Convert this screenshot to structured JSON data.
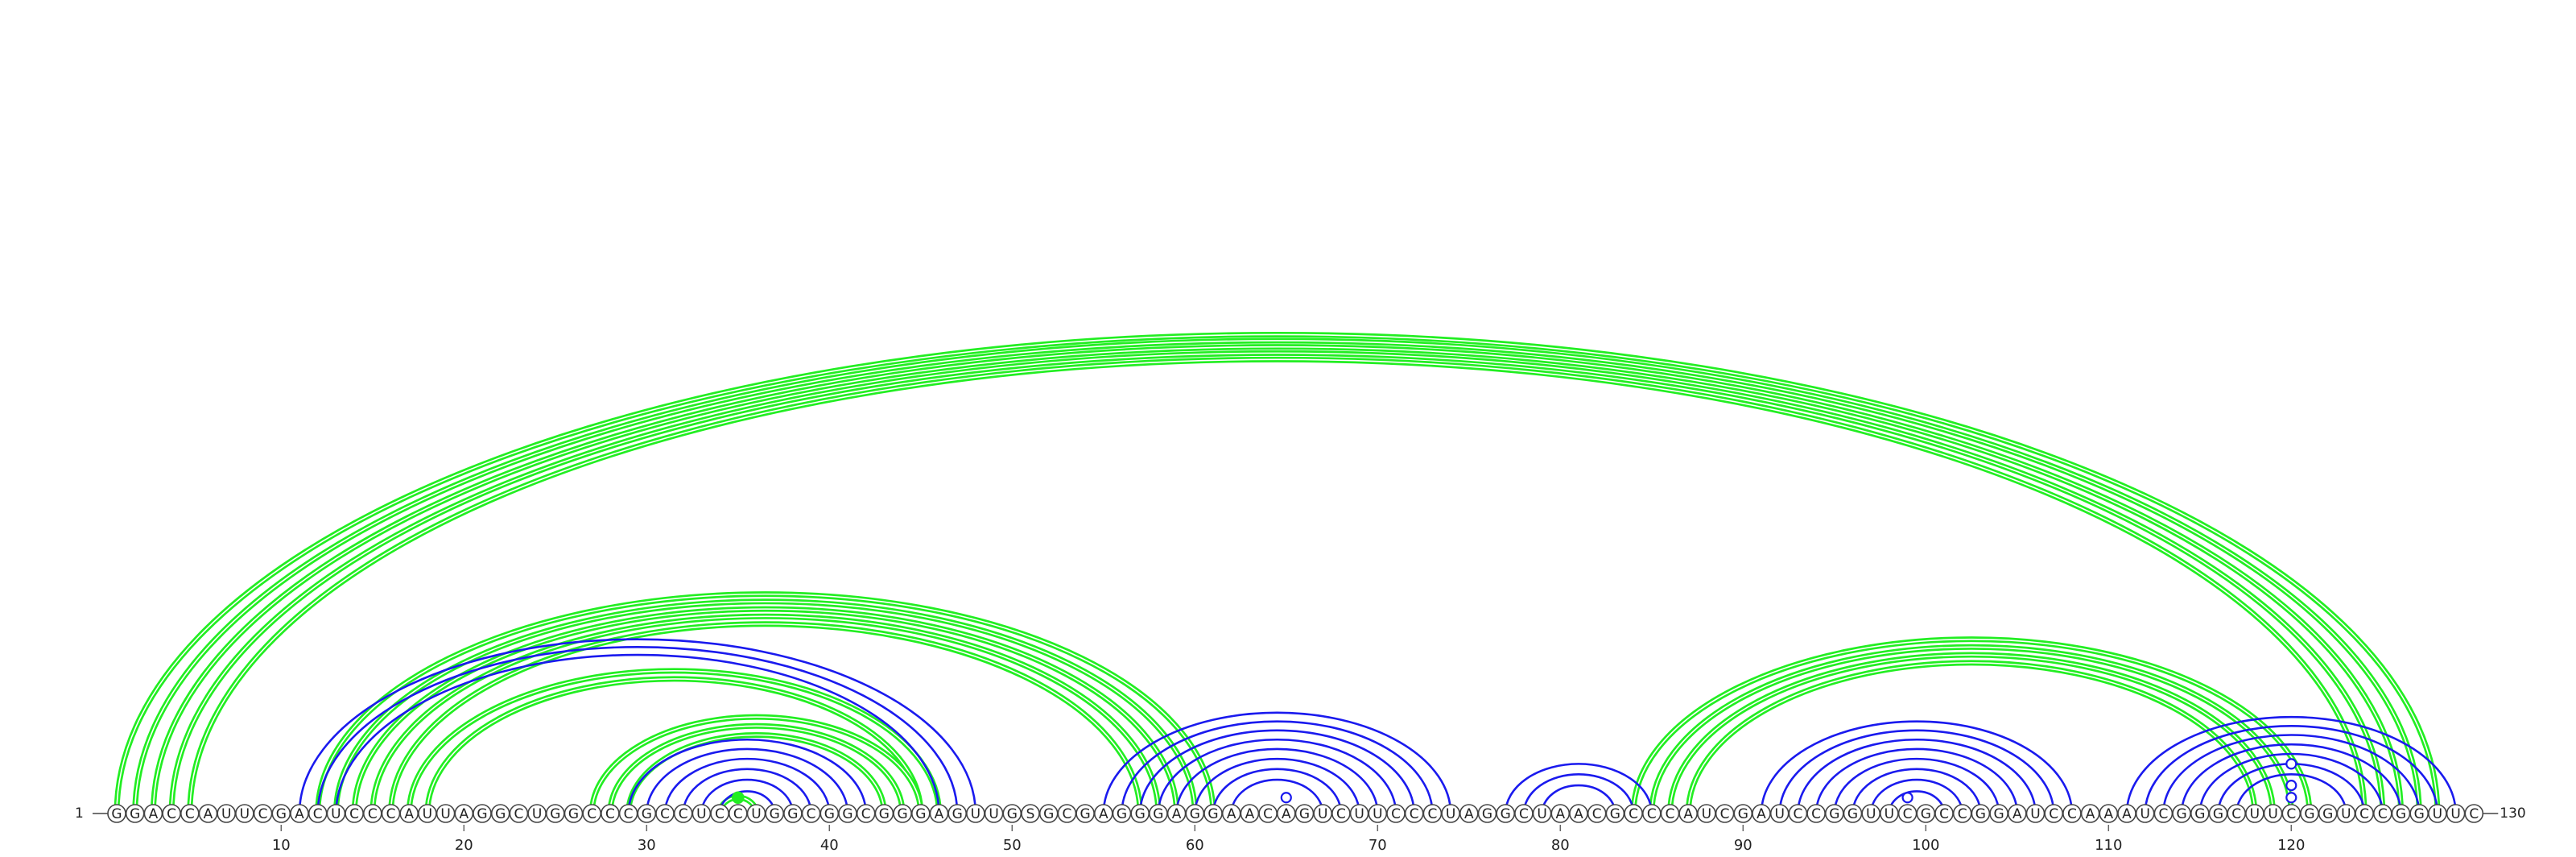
{
  "sequence": "GGACCAUUCGACUCCCAUUAGGCUGGCCCGCCUCCUGGCGGCGGGAGUUGSGCGAGGGAGGAACAGUCUUCCCUAGGCUAACGCCCAUCGAUCCGGUUCGCCGGAUCCAAAUCGGGCUUCGGUCCGGUUC",
  "start_label": "1",
  "end_label": "130",
  "length": 130,
  "ticks": [
    10,
    20,
    30,
    40,
    50,
    60,
    70,
    80,
    90,
    100,
    110,
    120
  ],
  "colors": {
    "upper_helices": "#22ee22",
    "lower_helices": "#1a1aee"
  },
  "helices": [
    {
      "set": "green",
      "pairs": [
        [
          1,
          128
        ],
        [
          2,
          127
        ],
        [
          3,
          126
        ],
        [
          4,
          125
        ],
        [
          5,
          124
        ]
      ]
    },
    {
      "set": "green",
      "pairs": [
        [
          12,
          61
        ],
        [
          13,
          60
        ],
        [
          14,
          59
        ],
        [
          15,
          58
        ],
        [
          16,
          57
        ]
      ]
    },
    {
      "set": "green",
      "pairs": [
        [
          17,
          46
        ],
        [
          18,
          45
        ]
      ]
    },
    {
      "set": "green",
      "pairs": [
        [
          27,
          45
        ],
        [
          28,
          44
        ],
        [
          29,
          43
        ]
      ]
    },
    {
      "set": "green",
      "pairs": [
        [
          34,
          36
        ]
      ]
    },
    {
      "set": "green",
      "pairs": [
        [
          84,
          121
        ],
        [
          85,
          120
        ],
        [
          86,
          119
        ],
        [
          87,
          118
        ]
      ]
    },
    {
      "set": "blue",
      "pairs": [
        [
          11,
          48
        ],
        [
          12,
          47
        ],
        [
          13,
          46
        ]
      ]
    },
    {
      "set": "blue",
      "pairs": [
        [
          29,
          42
        ],
        [
          30,
          41
        ],
        [
          31,
          40
        ],
        [
          32,
          39
        ],
        [
          33,
          38
        ],
        [
          34,
          37
        ]
      ]
    },
    {
      "set": "blue",
      "pairs": [
        [
          55,
          74
        ],
        [
          56,
          73
        ],
        [
          57,
          72
        ],
        [
          58,
          71
        ],
        [
          59,
          70
        ],
        [
          60,
          69
        ],
        [
          61,
          68
        ],
        [
          62,
          67
        ]
      ]
    },
    {
      "set": "blue",
      "pairs": [
        [
          77,
          85
        ],
        [
          78,
          84
        ],
        [
          79,
          83
        ]
      ]
    },
    {
      "set": "blue",
      "pairs": [
        [
          91,
          108
        ],
        [
          92,
          107
        ],
        [
          93,
          106
        ],
        [
          94,
          105
        ],
        [
          95,
          104
        ],
        [
          96,
          103
        ],
        [
          97,
          102
        ],
        [
          98,
          101
        ]
      ]
    },
    {
      "set": "blue",
      "pairs": [
        [
          111,
          129
        ],
        [
          112,
          128
        ],
        [
          113,
          127
        ],
        [
          114,
          126
        ],
        [
          115,
          125
        ],
        [
          116,
          124
        ],
        [
          117,
          123
        ]
      ]
    }
  ],
  "special_pairs": [
    {
      "pair": [
        34,
        36
      ],
      "marker": "filled-dot",
      "set": "green"
    },
    {
      "pair": [
        64,
        66
      ],
      "marker": "open-dot",
      "set": "blue"
    },
    {
      "pair": [
        98,
        100
      ],
      "marker": "open-dot",
      "set": "blue"
    },
    {
      "pair": [
        119,
        121
      ],
      "marker": "open-dot",
      "set": "blue"
    },
    {
      "pair": [
        118,
        122
      ],
      "marker": "open-dot",
      "set": "blue"
    },
    {
      "pair": [
        116,
        124
      ],
      "marker": "open-dot",
      "set": "blue"
    }
  ]
}
